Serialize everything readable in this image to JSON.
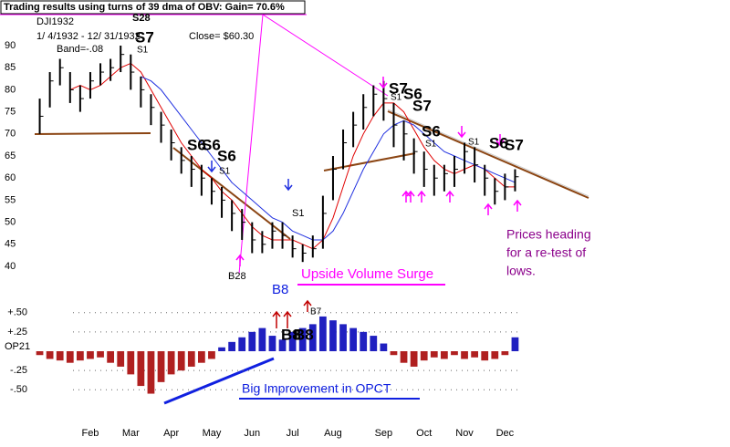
{
  "chart_data": [
    {
      "type": "ohlc",
      "title": "Trading results using turns of 39 dma of OBV: Gain= 70.6%",
      "symbol": "DJI1932",
      "date_range": "1/ 4/1932 - 12/ 31/1932",
      "close_label": "Close= $60.30",
      "band_label": "Band=-.08",
      "categories": [
        null,
        null,
        null,
        null,
        null,
        "Feb",
        null,
        null,
        null,
        "Mar",
        null,
        null,
        null,
        "Apr",
        null,
        null,
        null,
        "May",
        null,
        null,
        null,
        "Jun",
        null,
        null,
        null,
        "Jul",
        null,
        null,
        null,
        "Aug",
        null,
        null,
        null,
        null,
        "Sep",
        null,
        null,
        null,
        "Oct",
        null,
        null,
        null,
        "Nov",
        null,
        null,
        null,
        "Dec",
        null
      ],
      "high": [
        78,
        84,
        87,
        84,
        81,
        84,
        86,
        87,
        90,
        88,
        83,
        79,
        75,
        71,
        67,
        65,
        63,
        60,
        58,
        55,
        53,
        50,
        48,
        50,
        50,
        47,
        45,
        47,
        56,
        65,
        71,
        75,
        79,
        81,
        82,
        77,
        73,
        69,
        66,
        63,
        63,
        65,
        68,
        67,
        63,
        60,
        61,
        62
      ],
      "low": [
        70,
        76,
        81,
        77,
        75,
        78,
        81,
        82,
        84,
        80,
        76,
        72,
        68,
        64,
        61,
        58,
        56,
        54,
        51,
        48,
        46,
        43,
        43,
        44,
        44,
        42,
        41,
        42,
        44,
        55,
        62,
        67,
        71,
        74,
        73,
        67,
        64,
        61,
        58,
        56,
        57,
        58,
        61,
        59,
        56,
        54,
        55,
        57
      ],
      "close": [
        74,
        82,
        85,
        80,
        78,
        82,
        84,
        85,
        88,
        84,
        80,
        76,
        72,
        68,
        64,
        62,
        60,
        57,
        55,
        52,
        50,
        46,
        45,
        48,
        47,
        44,
        43,
        44,
        52,
        62,
        68,
        72,
        76,
        79,
        78,
        72,
        70,
        66,
        62,
        60,
        61,
        62,
        66,
        63,
        60,
        57,
        58,
        60.3
      ],
      "bar_color": "#000000",
      "moving_averages": [
        {
          "color": "#e00000",
          "values": [
            null,
            null,
            null,
            80,
            81,
            80,
            81,
            83,
            85,
            86,
            84,
            80,
            76,
            72,
            68,
            65,
            62,
            60,
            57,
            55,
            52,
            49,
            47,
            46,
            46,
            46,
            45,
            44,
            46,
            51,
            58,
            65,
            70,
            74,
            77,
            77,
            75,
            71,
            67,
            64,
            62,
            61,
            62,
            63,
            62,
            60,
            58,
            58
          ]
        },
        {
          "color": "#2030e0",
          "values": [
            null,
            null,
            null,
            null,
            null,
            null,
            null,
            null,
            null,
            null,
            83,
            82,
            80,
            77,
            74,
            71,
            68,
            65,
            62,
            59,
            57,
            55,
            53,
            51,
            50,
            48,
            47,
            46,
            46,
            48,
            52,
            57,
            62,
            66,
            70,
            72,
            73,
            72,
            70,
            68,
            66,
            65,
            64,
            63,
            62,
            61,
            60,
            59
          ]
        }
      ],
      "ylim": [
        38,
        96
      ],
      "yticks": [
        40,
        45,
        50,
        55,
        60,
        65,
        70,
        75,
        80,
        85,
        90
      ],
      "annotations": [
        "S28",
        "S7",
        "S1",
        "S6",
        "S6",
        "S6",
        "S1",
        "B28",
        "S1",
        "B8",
        "S7",
        "S6",
        "S7",
        "S1",
        "S6",
        "S1",
        "S1",
        "S6",
        "S7",
        "Upside Volume Surge",
        "Prices heading",
        "for a re-test of",
        "lows."
      ]
    },
    {
      "type": "bar",
      "axis_label": "OP21",
      "values": [
        -0.05,
        -0.1,
        -0.12,
        -0.15,
        -0.12,
        -0.1,
        -0.08,
        -0.15,
        -0.2,
        -0.3,
        -0.45,
        -0.55,
        -0.4,
        -0.3,
        -0.25,
        -0.2,
        -0.15,
        -0.1,
        0.05,
        0.12,
        0.18,
        0.25,
        0.3,
        0.2,
        0.15,
        0.25,
        0.3,
        0.35,
        0.45,
        0.4,
        0.35,
        0.3,
        0.25,
        0.2,
        0.1,
        -0.05,
        -0.15,
        -0.2,
        -0.12,
        -0.08,
        -0.1,
        -0.05,
        -0.1,
        -0.08,
        -0.12,
        -0.1,
        -0.05,
        0.18
      ],
      "positive_color": "#2020c0",
      "negative_color": "#b02020",
      "ylim": [
        -0.65,
        0.65
      ],
      "yticks": [
        {
          "value": 0.5,
          "label": "+.50"
        },
        {
          "value": 0.25,
          "label": "+.25"
        },
        {
          "value": -0.25,
          "label": "-.25"
        },
        {
          "value": -0.5,
          "label": "-.50"
        }
      ],
      "grid": true,
      "annotations": [
        "B7",
        "B8",
        "B8",
        "Big Improvement in OPCT"
      ]
    }
  ]
}
